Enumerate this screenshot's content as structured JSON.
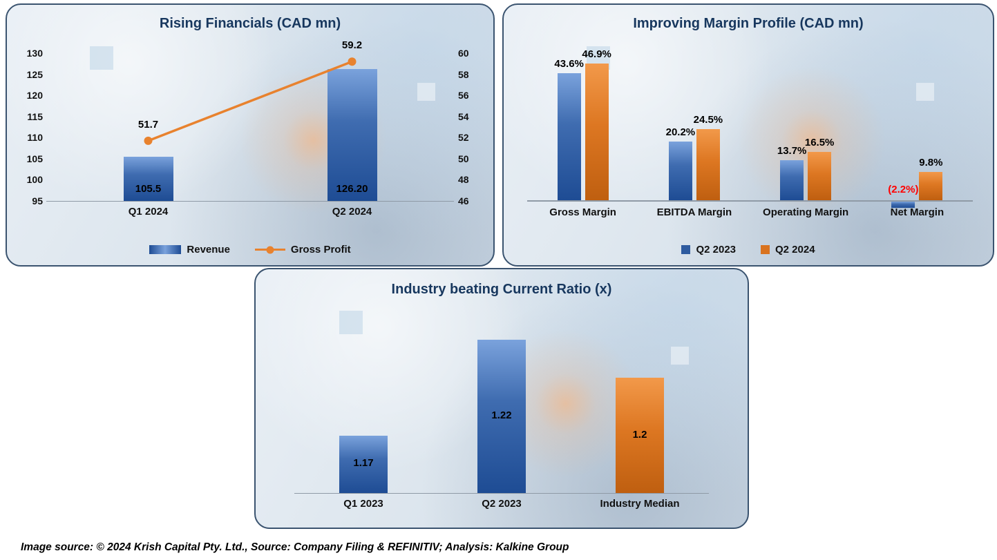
{
  "footer": {
    "text": "Image source: © 2024 Krish Capital Pty. Ltd., Source: Company Filing & REFINITIV; Analysis: Kalkine Group"
  },
  "colors": {
    "bar_blue": "#2e5b9f",
    "bar_blue_light": "#7aa2dc",
    "bar_blue_dark": "#1e4c94",
    "bar_orange": "#d9731f",
    "line_orange": "#e8822e",
    "title_navy": "#17375e",
    "negative_red": "#ff0000",
    "panel_border": "#3a536f"
  },
  "chart_data": [
    {
      "id": "rising-financials",
      "type": "bar",
      "subtype": "bar+line combo, dual axis",
      "title": "Rising Financials (CAD mn)",
      "categories": [
        "Q1 2024",
        "Q2 2024"
      ],
      "series": [
        {
          "name": "Revenue",
          "type": "bar",
          "axis": "left",
          "values": [
            105.5,
            126.2
          ],
          "labels": [
            "105.5",
            "126.20"
          ]
        },
        {
          "name": "Gross Profit",
          "type": "line",
          "axis": "right",
          "values": [
            51.7,
            59.2
          ],
          "labels": [
            "51.7",
            "59.2"
          ]
        }
      ],
      "left_axis": {
        "min": 95,
        "max": 130,
        "ticks": [
          "130",
          "125",
          "120",
          "115",
          "110",
          "105",
          "100",
          "95"
        ]
      },
      "right_axis": {
        "min": 46,
        "max": 60,
        "ticks": [
          "60",
          "58",
          "56",
          "54",
          "52",
          "50",
          "48",
          "46"
        ]
      },
      "legend": [
        "Revenue",
        "Gross Profit"
      ],
      "legend_position": "bottom",
      "grid": false
    },
    {
      "id": "margin-profile",
      "type": "bar",
      "subtype": "grouped bars with negative value",
      "title": "Improving Margin Profile (CAD mn)",
      "categories": [
        "Gross Margin",
        "EBITDA Margin",
        "Operating Margin",
        "Net Margin"
      ],
      "series": [
        {
          "name": "Q2 2023",
          "values": [
            43.6,
            20.2,
            13.7,
            -2.2
          ],
          "labels": [
            "43.6%",
            "20.2%",
            "13.7%",
            "(2.2%)"
          ]
        },
        {
          "name": "Q2 2024",
          "values": [
            46.9,
            24.5,
            16.5,
            9.8
          ],
          "labels": [
            "46.9%",
            "24.5%",
            "16.5%",
            "9.8%"
          ]
        }
      ],
      "ylim": [
        -5,
        50
      ],
      "legend": [
        "Q2 2023",
        "Q2 2024"
      ],
      "legend_position": "bottom",
      "grid": false
    },
    {
      "id": "current-ratio",
      "type": "bar",
      "subtype": "single series, per-bar colors",
      "title": "Industry beating Current Ratio (x)",
      "categories": [
        "Q1 2023",
        "Q2 2023",
        "Industry Median"
      ],
      "values": [
        1.17,
        1.22,
        1.2
      ],
      "labels": [
        "1.17",
        "1.22",
        "1.2"
      ],
      "bar_colors": [
        "blue",
        "blue",
        "orange"
      ],
      "ylim": [
        1.14,
        1.23
      ],
      "grid": false
    }
  ]
}
